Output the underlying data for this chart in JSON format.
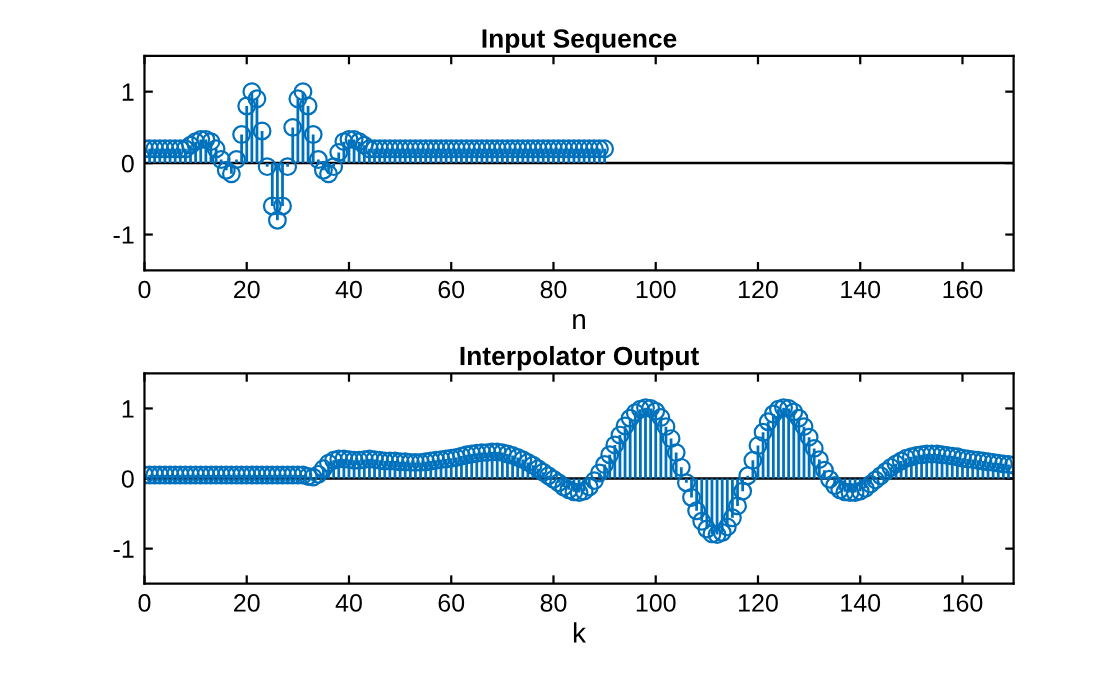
{
  "chart_data": [
    {
      "type": "lollipop",
      "title": "Input Sequence",
      "xlabel": "n",
      "xlim": [
        0,
        170
      ],
      "xticks": [
        0,
        20,
        40,
        60,
        80,
        100,
        120,
        140,
        160
      ],
      "ylim": [
        -1.5,
        1.5
      ],
      "yticks": [
        -1,
        0,
        1
      ],
      "grid": false,
      "marker": "circle",
      "ref_lines": [
        {
          "axis": "y",
          "value": 0,
          "color": "#000000"
        }
      ],
      "series": [
        {
          "color": "#0072bd",
          "x": [
            0,
            1,
            2,
            3,
            4,
            5,
            6,
            7,
            8,
            9,
            10,
            11,
            12,
            13,
            14,
            15,
            16,
            17,
            18,
            19,
            20,
            21,
            22,
            23,
            24,
            25,
            26,
            27,
            28,
            29,
            30,
            31,
            32,
            33,
            34,
            35,
            36,
            37,
            38,
            39,
            40,
            41,
            42,
            43,
            44,
            45,
            46,
            47,
            48,
            49,
            50,
            51,
            52,
            53,
            54,
            55,
            56,
            57,
            58,
            59,
            60,
            61,
            62,
            63,
            64,
            65,
            66,
            67,
            68,
            69,
            70,
            71,
            72,
            73,
            74,
            75,
            76,
            77,
            78,
            79,
            80,
            81,
            82,
            83,
            84,
            85,
            86,
            87,
            88,
            89,
            90
          ],
          "values": [
            0.2,
            0.2,
            0.2,
            0.2,
            0.2,
            0.2,
            0.2,
            0.2,
            0.2,
            0.25,
            0.3,
            0.33,
            0.33,
            0.3,
            0.2,
            0.05,
            -0.1,
            -0.15,
            0.05,
            0.4,
            0.8,
            1.0,
            0.9,
            0.45,
            -0.05,
            -0.6,
            -0.8,
            -0.6,
            -0.05,
            0.5,
            0.9,
            1.0,
            0.8,
            0.4,
            0.05,
            -0.1,
            -0.15,
            -0.05,
            0.15,
            0.3,
            0.33,
            0.33,
            0.3,
            0.25,
            0.2,
            0.2,
            0.2,
            0.2,
            0.2,
            0.2,
            0.2,
            0.2,
            0.2,
            0.2,
            0.2,
            0.2,
            0.2,
            0.2,
            0.2,
            0.2,
            0.2,
            0.2,
            0.2,
            0.2,
            0.2,
            0.2,
            0.2,
            0.2,
            0.2,
            0.2,
            0.2,
            0.2,
            0.2,
            0.2,
            0.2,
            0.2,
            0.2,
            0.2,
            0.2,
            0.2,
            0.2,
            0.2,
            0.2,
            0.2,
            0.2,
            0.2,
            0.2,
            0.2,
            0.2,
            0.2,
            0.2
          ]
        }
      ]
    },
    {
      "type": "lollipop",
      "title": "Interpolator Output",
      "xlabel": "k",
      "xlim": [
        0,
        170
      ],
      "xticks": [
        0,
        20,
        40,
        60,
        80,
        100,
        120,
        140,
        160
      ],
      "ylim": [
        -1.5,
        1.5
      ],
      "yticks": [
        -1,
        0,
        1
      ],
      "grid": false,
      "marker": "circle",
      "ref_lines": [
        {
          "axis": "y",
          "value": 0,
          "color": "#000000"
        }
      ],
      "series": [
        {
          "color": "#0072bd",
          "x": [
            0,
            1,
            2,
            3,
            4,
            5,
            6,
            7,
            8,
            9,
            10,
            11,
            12,
            13,
            14,
            15,
            16,
            17,
            18,
            19,
            20,
            21,
            22,
            23,
            24,
            25,
            26,
            27,
            28,
            29,
            30,
            31,
            32,
            33,
            34,
            35,
            36,
            37,
            38,
            39,
            40,
            41,
            42,
            43,
            44,
            45,
            46,
            47,
            48,
            49,
            50,
            51,
            52,
            53,
            54,
            55,
            56,
            57,
            58,
            59,
            60,
            61,
            62,
            63,
            64,
            65,
            66,
            67,
            68,
            69,
            70,
            71,
            72,
            73,
            74,
            75,
            76,
            77,
            78,
            79,
            80,
            81,
            82,
            83,
            84,
            85,
            86,
            87,
            88,
            89,
            90,
            91,
            92,
            93,
            94,
            95,
            96,
            97,
            98,
            99,
            100,
            101,
            102,
            103,
            104,
            105,
            106,
            107,
            108,
            109,
            110,
            111,
            112,
            113,
            114,
            115,
            116,
            117,
            118,
            119,
            120,
            121,
            122,
            123,
            124,
            125,
            126,
            127,
            128,
            129,
            130,
            131,
            132,
            133,
            134,
            135,
            136,
            137,
            138,
            139,
            140,
            141,
            142,
            143,
            144,
            145,
            146,
            147,
            148,
            149,
            150,
            151,
            152,
            153,
            154,
            155,
            156,
            157,
            158,
            159,
            160,
            161,
            162,
            163,
            164,
            165,
            166,
            167,
            168,
            169,
            170
          ],
          "values": [
            0.05,
            0.05,
            0.05,
            0.05,
            0.05,
            0.05,
            0.05,
            0.05,
            0.05,
            0.05,
            0.05,
            0.05,
            0.05,
            0.05,
            0.05,
            0.05,
            0.05,
            0.05,
            0.05,
            0.05,
            0.05,
            0.05,
            0.05,
            0.05,
            0.05,
            0.05,
            0.05,
            0.05,
            0.05,
            0.05,
            0.05,
            0.05,
            0.03,
            0.02,
            0.06,
            0.14,
            0.22,
            0.26,
            0.28,
            0.28,
            0.27,
            0.26,
            0.26,
            0.27,
            0.28,
            0.27,
            0.26,
            0.25,
            0.25,
            0.25,
            0.24,
            0.24,
            0.23,
            0.23,
            0.23,
            0.24,
            0.25,
            0.26,
            0.27,
            0.28,
            0.29,
            0.3,
            0.32,
            0.34,
            0.35,
            0.36,
            0.37,
            0.37,
            0.38,
            0.38,
            0.37,
            0.35,
            0.33,
            0.3,
            0.27,
            0.23,
            0.19,
            0.14,
            0.09,
            0.04,
            -0.01,
            -0.06,
            -0.12,
            -0.16,
            -0.19,
            -0.2,
            -0.18,
            -0.12,
            -0.03,
            0.08,
            0.2,
            0.34,
            0.48,
            0.62,
            0.75,
            0.86,
            0.94,
            0.99,
            1.01,
            1.0,
            0.96,
            0.87,
            0.74,
            0.57,
            0.37,
            0.16,
            -0.06,
            -0.27,
            -0.46,
            -0.61,
            -0.72,
            -0.79,
            -0.8,
            -0.77,
            -0.69,
            -0.56,
            -0.39,
            -0.18,
            0.04,
            0.26,
            0.47,
            0.66,
            0.81,
            0.92,
            0.99,
            1.01,
            1.0,
            0.95,
            0.86,
            0.74,
            0.59,
            0.43,
            0.27,
            0.12,
            -0.01,
            -0.1,
            -0.16,
            -0.19,
            -0.2,
            -0.2,
            -0.18,
            -0.14,
            -0.08,
            -0.02,
            0.04,
            0.1,
            0.16,
            0.21,
            0.25,
            0.29,
            0.31,
            0.33,
            0.34,
            0.35,
            0.35,
            0.35,
            0.34,
            0.33,
            0.32,
            0.31,
            0.29,
            0.28,
            0.27,
            0.26,
            0.25,
            0.24,
            0.23,
            0.22,
            0.21,
            0.2,
            0.19
          ]
        }
      ]
    }
  ]
}
